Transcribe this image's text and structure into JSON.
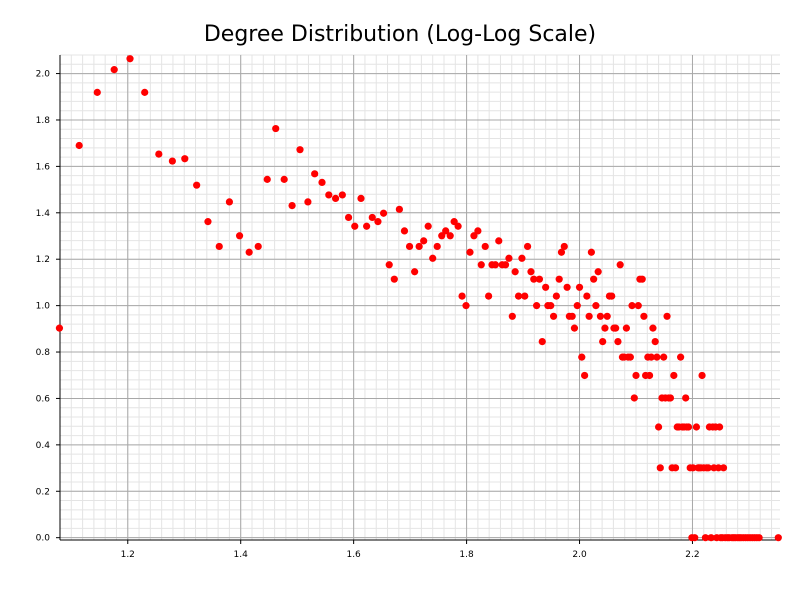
{
  "chart_data": {
    "type": "scatter",
    "title": "Degree Distribution (Log-Log Scale)",
    "xlabel": "",
    "ylabel": "",
    "xlim": [
      1.08,
      2.355
    ],
    "ylim": [
      -0.01,
      2.08
    ],
    "grid": true,
    "marker_color": "#ff0000",
    "x_ticks": [
      "1.2",
      "1.4",
      "1.6",
      "1.8",
      "2.0",
      "2.2"
    ],
    "y_ticks": [
      "0.0",
      "0.2",
      "0.4",
      "0.6",
      "0.8",
      "1.0",
      "1.2",
      "1.4",
      "1.6",
      "1.8",
      "2.0"
    ],
    "series": [
      {
        "points": [
          [
            1.079,
            0.903
          ],
          [
            1.114,
            1.69
          ],
          [
            1.146,
            1.919
          ],
          [
            1.176,
            2.017
          ],
          [
            1.204,
            2.064
          ],
          [
            1.23,
            1.919
          ],
          [
            1.255,
            1.653
          ],
          [
            1.279,
            1.623
          ],
          [
            1.301,
            1.633
          ],
          [
            1.322,
            1.519
          ],
          [
            1.342,
            1.362
          ],
          [
            1.362,
            1.255
          ],
          [
            1.38,
            1.447
          ],
          [
            1.398,
            1.301
          ],
          [
            1.415,
            1.23
          ],
          [
            1.431,
            1.255
          ],
          [
            1.447,
            1.544
          ],
          [
            1.462,
            1.763
          ],
          [
            1.477,
            1.544
          ],
          [
            1.491,
            1.431
          ],
          [
            1.505,
            1.672
          ],
          [
            1.519,
            1.447
          ],
          [
            1.531,
            1.568
          ],
          [
            1.544,
            1.531
          ],
          [
            1.556,
            1.477
          ],
          [
            1.568,
            1.462
          ],
          [
            1.58,
            1.477
          ],
          [
            1.591,
            1.38
          ],
          [
            1.602,
            1.342
          ],
          [
            1.613,
            1.462
          ],
          [
            1.623,
            1.342
          ],
          [
            1.633,
            1.38
          ],
          [
            1.643,
            1.362
          ],
          [
            1.653,
            1.398
          ],
          [
            1.663,
            1.176
          ],
          [
            1.672,
            1.114
          ],
          [
            1.681,
            1.415
          ],
          [
            1.69,
            1.322
          ],
          [
            1.699,
            1.255
          ],
          [
            1.708,
            1.146
          ],
          [
            1.716,
            1.255
          ],
          [
            1.724,
            1.279
          ],
          [
            1.732,
            1.342
          ],
          [
            1.74,
            1.204
          ],
          [
            1.748,
            1.255
          ],
          [
            1.756,
            1.301
          ],
          [
            1.763,
            1.322
          ],
          [
            1.771,
            1.301
          ],
          [
            1.778,
            1.362
          ],
          [
            1.785,
            1.342
          ],
          [
            1.792,
            1.041
          ],
          [
            1.799,
            1.0
          ],
          [
            1.806,
            1.23
          ],
          [
            1.813,
            1.301
          ],
          [
            1.82,
            1.322
          ],
          [
            1.826,
            1.176
          ],
          [
            1.833,
            1.255
          ],
          [
            1.839,
            1.041
          ],
          [
            1.845,
            1.176
          ],
          [
            1.851,
            1.176
          ],
          [
            1.857,
            1.279
          ],
          [
            1.863,
            1.176
          ],
          [
            1.869,
            1.176
          ],
          [
            1.875,
            1.204
          ],
          [
            1.881,
            0.954
          ],
          [
            1.886,
            1.146
          ],
          [
            1.892,
            1.041
          ],
          [
            1.898,
            1.204
          ],
          [
            1.903,
            1.041
          ],
          [
            1.908,
            1.255
          ],
          [
            1.914,
            1.146
          ],
          [
            1.919,
            1.114
          ],
          [
            1.924,
            1.0
          ],
          [
            1.929,
            1.114
          ],
          [
            1.934,
            0.845
          ],
          [
            1.94,
            1.079
          ],
          [
            1.944,
            1.0
          ],
          [
            1.949,
            1.0
          ],
          [
            1.954,
            0.954
          ],
          [
            1.959,
            1.041
          ],
          [
            1.964,
            1.114
          ],
          [
            1.968,
            1.23
          ],
          [
            1.973,
            1.255
          ],
          [
            1.978,
            1.079
          ],
          [
            1.982,
            0.954
          ],
          [
            1.987,
            0.954
          ],
          [
            1.991,
            0.903
          ],
          [
            1.996,
            1.0
          ],
          [
            2.0,
            1.079
          ],
          [
            2.004,
            0.778
          ],
          [
            2.009,
            0.699
          ],
          [
            2.013,
            1.041
          ],
          [
            2.017,
            0.954
          ],
          [
            2.021,
            1.23
          ],
          [
            2.025,
            1.114
          ],
          [
            2.029,
            1.0
          ],
          [
            2.033,
            1.146
          ],
          [
            2.037,
            0.954
          ],
          [
            2.041,
            0.845
          ],
          [
            2.045,
            0.903
          ],
          [
            2.049,
            0.954
          ],
          [
            2.053,
            1.041
          ],
          [
            2.057,
            1.041
          ],
          [
            2.061,
            0.903
          ],
          [
            2.064,
            0.903
          ],
          [
            2.068,
            0.845
          ],
          [
            2.072,
            1.176
          ],
          [
            2.076,
            0.778
          ],
          [
            2.079,
            0.778
          ],
          [
            2.083,
            0.903
          ],
          [
            2.086,
            0.778
          ],
          [
            2.09,
            0.778
          ],
          [
            2.093,
            1.0
          ],
          [
            2.097,
            0.602
          ],
          [
            2.1,
            0.699
          ],
          [
            2.104,
            1.0
          ],
          [
            2.107,
            1.114
          ],
          [
            2.111,
            1.114
          ],
          [
            2.114,
            0.954
          ],
          [
            2.117,
            0.699
          ],
          [
            2.121,
            0.778
          ],
          [
            2.124,
            0.699
          ],
          [
            2.127,
            0.778
          ],
          [
            2.13,
            0.903
          ],
          [
            2.134,
            0.845
          ],
          [
            2.137,
            0.778
          ],
          [
            2.14,
            0.477
          ],
          [
            2.143,
            0.301
          ],
          [
            2.146,
            0.602
          ],
          [
            2.149,
            0.778
          ],
          [
            2.152,
            0.602
          ],
          [
            2.155,
            0.954
          ],
          [
            2.158,
            0.602
          ],
          [
            2.161,
            0.602
          ],
          [
            2.164,
            0.301
          ],
          [
            2.167,
            0.699
          ],
          [
            2.17,
            0.301
          ],
          [
            2.173,
            0.477
          ],
          [
            2.176,
            0.477
          ],
          [
            2.179,
            0.778
          ],
          [
            2.182,
            0.477
          ],
          [
            2.185,
            0.477
          ],
          [
            2.188,
            0.602
          ],
          [
            2.19,
            0.477
          ],
          [
            2.193,
            0.477
          ],
          [
            2.196,
            0.301
          ],
          [
            2.199,
            0.0
          ],
          [
            2.201,
            0.301
          ],
          [
            2.204,
            0.0
          ],
          [
            2.207,
            0.477
          ],
          [
            2.21,
            0.301
          ],
          [
            2.212,
            0.301
          ],
          [
            2.215,
            0.301
          ],
          [
            2.217,
            0.699
          ],
          [
            2.22,
            0.301
          ],
          [
            2.223,
            0.0
          ],
          [
            2.225,
            0.301
          ],
          [
            2.228,
            0.301
          ],
          [
            2.23,
            0.477
          ],
          [
            2.233,
            0.0
          ],
          [
            2.236,
            0.477
          ],
          [
            2.238,
            0.301
          ],
          [
            2.241,
            0.477
          ],
          [
            2.243,
            0.0
          ],
          [
            2.246,
            0.301
          ],
          [
            2.248,
            0.477
          ],
          [
            2.25,
            0.0
          ],
          [
            2.253,
            0.0
          ],
          [
            2.255,
            0.301
          ],
          [
            2.258,
            0.0
          ],
          [
            2.262,
            0.0
          ],
          [
            2.265,
            0.0
          ],
          [
            2.27,
            0.0
          ],
          [
            2.273,
            0.0
          ],
          [
            2.276,
            0.0
          ],
          [
            2.28,
            0.0
          ],
          [
            2.283,
            0.0
          ],
          [
            2.286,
            0.0
          ],
          [
            2.29,
            0.0
          ],
          [
            2.294,
            0.0
          ],
          [
            2.298,
            0.0
          ],
          [
            2.302,
            0.0
          ],
          [
            2.306,
            0.0
          ],
          [
            2.31,
            0.0
          ],
          [
            2.314,
            0.0
          ],
          [
            2.318,
            0.0
          ],
          [
            2.352,
            0.0
          ]
        ]
      }
    ]
  }
}
